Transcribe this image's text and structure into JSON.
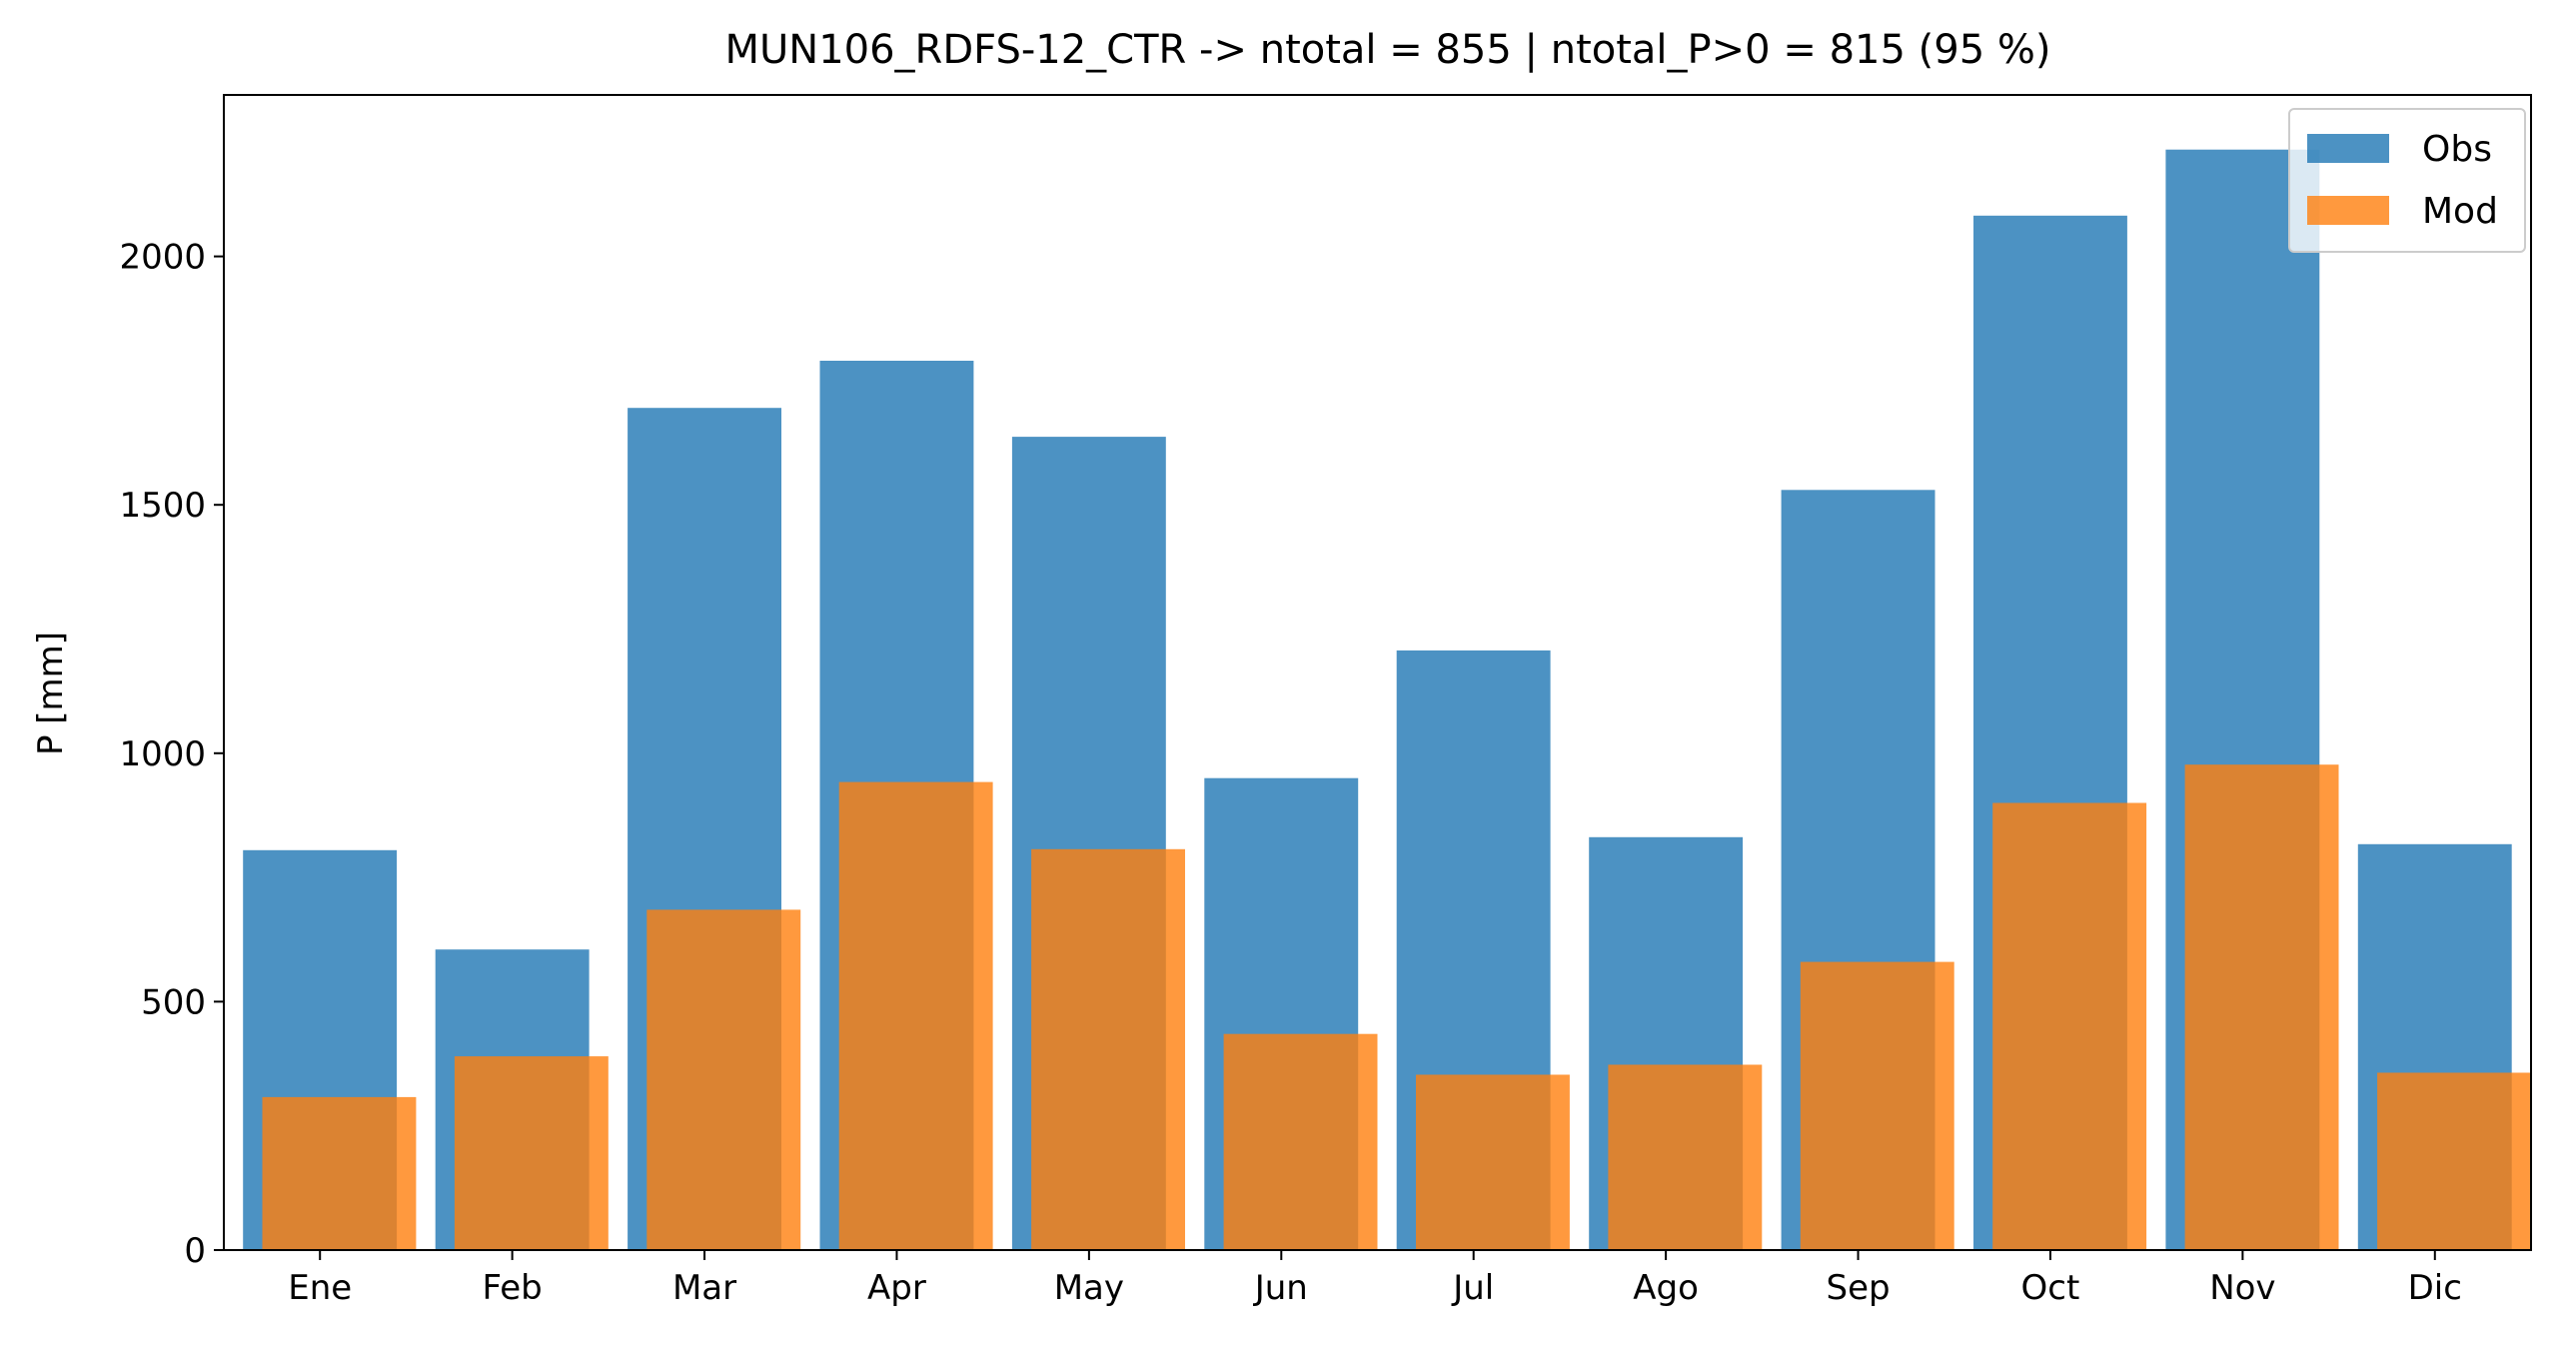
{
  "chart_data": {
    "type": "bar",
    "title": "MUN106_RDFS-12_CTR -> ntotal = 855 | ntotal_P>0 = 815 (95 %)",
    "xlabel": "",
    "ylabel": "P [mm]",
    "categories": [
      "Ene",
      "Feb",
      "Mar",
      "Apr",
      "May",
      "Jun",
      "Jul",
      "Ago",
      "Sep",
      "Oct",
      "Nov",
      "Dic"
    ],
    "series": [
      {
        "name": "Obs",
        "color": "#1f77b4",
        "values": [
          805,
          605,
          1695,
          1790,
          1637,
          950,
          1207,
          831,
          1530,
          2082,
          2215,
          817
        ]
      },
      {
        "name": "Mod",
        "color": "#ff7f0e",
        "values": [
          308,
          390,
          685,
          942,
          807,
          435,
          353,
          373,
          580,
          900,
          977,
          357
        ]
      }
    ],
    "yticks": [
      0,
      500,
      1000,
      1500,
      2000
    ],
    "ylim": [
      0,
      2325
    ],
    "legend_position": "top-right",
    "grid": false,
    "bar_alpha": 0.8
  }
}
